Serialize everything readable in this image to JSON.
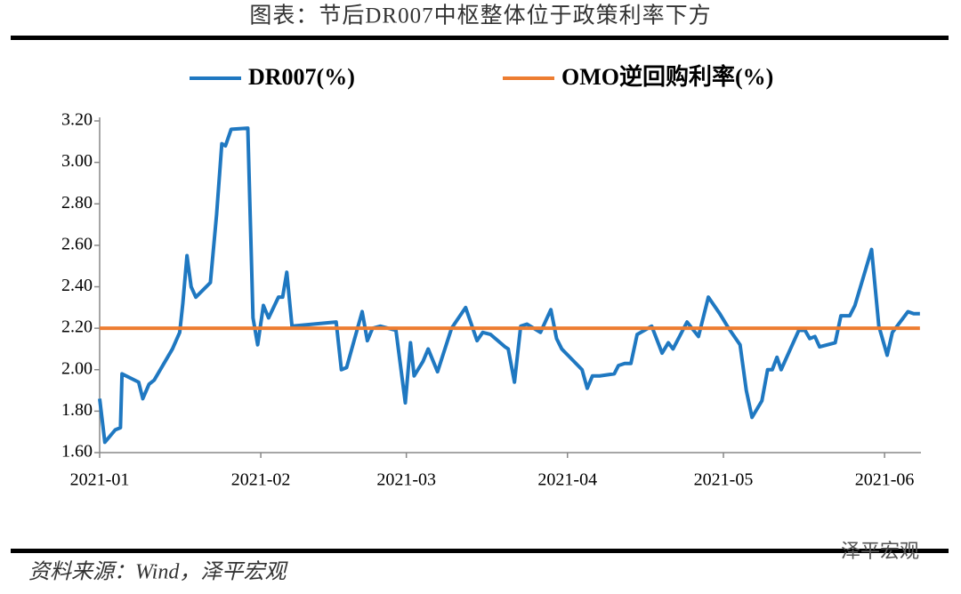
{
  "chart_data": {
    "type": "line",
    "title": "图表：节后DR007中枢整体位于政策利率下方",
    "source": "资料来源：Wind，泽平宏观",
    "watermark": "泽平宏观",
    "xlim": [
      0,
      158
    ],
    "xticks": [
      {
        "value": 0,
        "label": "2021-01"
      },
      {
        "value": 31,
        "label": "2021-02"
      },
      {
        "value": 59,
        "label": "2021-03"
      },
      {
        "value": 90,
        "label": "2021-04"
      },
      {
        "value": 120,
        "label": "2021-05"
      },
      {
        "value": 151,
        "label": "2021-06"
      }
    ],
    "ylim": [
      1.6,
      3.2
    ],
    "yticks": [
      {
        "value": 1.6,
        "label": "1.60"
      },
      {
        "value": 1.8,
        "label": "1.80"
      },
      {
        "value": 2.0,
        "label": "2.00"
      },
      {
        "value": 2.2,
        "label": "2.20"
      },
      {
        "value": 2.4,
        "label": "2.40"
      },
      {
        "value": 2.6,
        "label": "2.60"
      },
      {
        "value": 2.8,
        "label": "2.80"
      },
      {
        "value": 3.0,
        "label": "3.00"
      },
      {
        "value": 3.2,
        "label": "3.20"
      }
    ],
    "legend": "top",
    "series": [
      {
        "name": "DR007(%)",
        "color": "#1f78c1",
        "x": [
          0,
          1,
          2,
          3,
          4,
          4.3,
          7.5,
          8.3,
          9.5,
          10.5,
          14,
          15.4,
          16,
          16.8,
          17.6,
          18.5,
          21.3,
          22.5,
          23.5,
          24.2,
          25.3,
          28.5,
          29.5,
          30.4,
          31.5,
          32.5,
          34.4,
          35.2,
          36,
          37,
          45.5,
          46.5,
          47.5,
          50.5,
          51.5,
          52.5,
          54,
          57,
          58.8,
          59.8,
          60.5,
          62.2,
          63.2,
          65,
          67.7,
          70.4,
          72.6,
          73.7,
          75.2,
          78,
          78.6,
          79.8,
          81,
          82.2,
          84.8,
          86.8,
          87.9,
          88.9,
          92.8,
          93.8,
          94.8,
          96.2,
          99,
          99.8,
          101,
          102.2,
          103.4,
          106.2,
          108.2,
          109.4,
          110.3,
          113,
          115.2,
          117.1,
          119.3,
          121,
          123.2,
          124.4,
          125.5,
          127.4,
          128.5,
          129.4,
          130.3,
          131.1,
          134.5,
          135.7,
          136.6,
          137.6,
          138.5,
          141.5,
          142.6,
          144.3,
          145.3,
          148.5,
          149.9,
          151.5,
          152.5,
          153.7,
          155.5,
          156.6,
          157.8
        ],
        "values": [
          1.86,
          1.65,
          1.68,
          1.71,
          1.72,
          1.98,
          1.94,
          1.86,
          1.93,
          1.95,
          2.1,
          2.18,
          2.32,
          2.55,
          2.4,
          2.35,
          2.42,
          2.75,
          3.09,
          3.08,
          3.16,
          3.165,
          2.25,
          2.12,
          2.31,
          2.25,
          2.35,
          2.35,
          2.47,
          2.21,
          2.23,
          2.0,
          2.01,
          2.28,
          2.14,
          2.2,
          2.21,
          2.19,
          1.84,
          2.13,
          1.97,
          2.04,
          2.1,
          1.99,
          2.2,
          2.3,
          2.14,
          2.18,
          2.17,
          2.11,
          2.1,
          1.94,
          2.21,
          2.22,
          2.18,
          2.29,
          2.15,
          2.1,
          2.0,
          1.91,
          1.97,
          1.97,
          1.98,
          2.02,
          2.03,
          2.03,
          2.17,
          2.21,
          2.08,
          2.13,
          2.1,
          2.23,
          2.16,
          2.35,
          2.27,
          2.2,
          2.12,
          1.9,
          1.77,
          1.85,
          2.0,
          2.0,
          2.06,
          2.0,
          2.19,
          2.19,
          2.15,
          2.16,
          2.11,
          2.13,
          2.26,
          2.26,
          2.31,
          2.58,
          2.21,
          2.07,
          2.18,
          2.22,
          2.28,
          2.27,
          2.27
        ]
      },
      {
        "name": "OMO逆回购利率(%)",
        "color": "#ed7d31",
        "x": [
          0,
          157.8
        ],
        "values": [
          2.2,
          2.2
        ]
      }
    ]
  }
}
